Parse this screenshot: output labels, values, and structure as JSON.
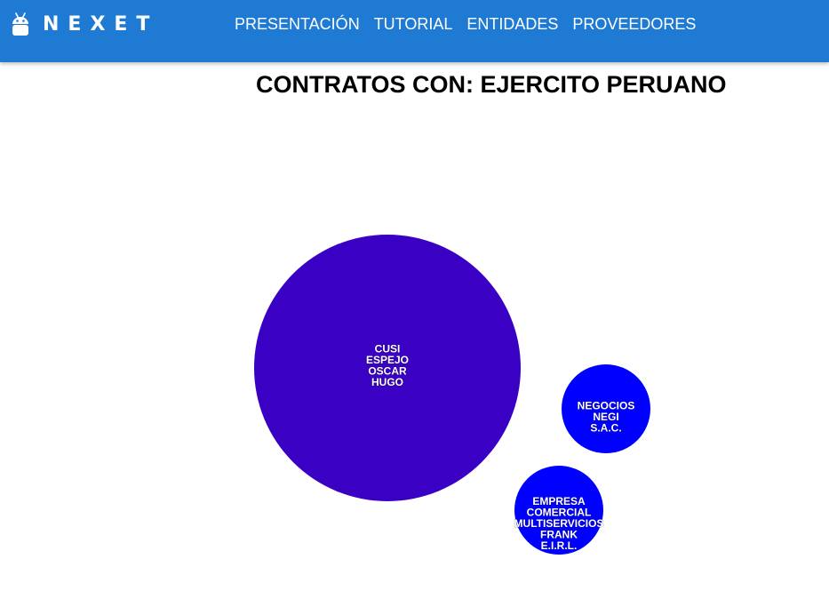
{
  "app": {
    "brand": "NEXET"
  },
  "nav": {
    "items": [
      {
        "label": "PRESENTACIÓN"
      },
      {
        "label": "TUTORIAL"
      },
      {
        "label": "ENTIDADES"
      },
      {
        "label": "PROVEEDORES"
      }
    ]
  },
  "page": {
    "title": "CONTRATOS CON: EJERCITO PERUANO"
  },
  "bubbles": [
    {
      "name": "CUSI ESPEJO OSCAR HUGO",
      "lines": [
        "CUSI",
        "ESPEJO",
        "OSCAR",
        "HUGO"
      ],
      "color": "#3a00c4"
    },
    {
      "name": "NEGOCIOS NEGI S.A.C.",
      "lines": [
        "NEGOCIOS",
        "NEGI",
        "S.A.C."
      ],
      "color": "#0000ff"
    },
    {
      "name": "EMPRESA COMERCIAL MULTISERVICIOS FRANK E.I.R.L.",
      "lines": [
        "EMPRESA",
        "COMERCIAL",
        "MULTISERVICIOS",
        "FRANK",
        "E.I.R.L."
      ],
      "color": "#0000ff"
    }
  ],
  "colors": {
    "navbar": "#1e7ad3",
    "title": "#000000"
  },
  "icons": {
    "brand": "android-icon"
  }
}
